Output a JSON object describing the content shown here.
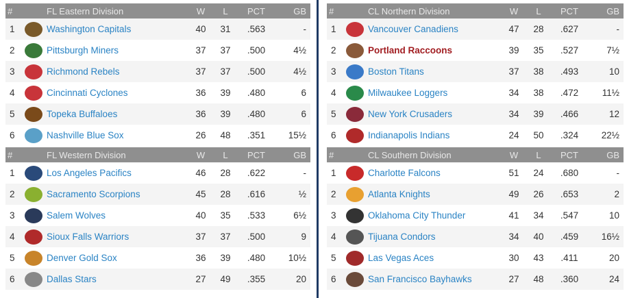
{
  "headers": {
    "rank": "#",
    "w": "W",
    "l": "L",
    "pct": "PCT",
    "gb": "GB"
  },
  "divisions": [
    {
      "name": "FL Eastern Division",
      "teams": [
        {
          "rank": "1",
          "name": "Washington Capitals",
          "w": "40",
          "l": "31",
          "pct": ".563",
          "gb": "-",
          "logo": "#7a5a2a"
        },
        {
          "rank": "2",
          "name": "Pittsburgh Miners",
          "w": "37",
          "l": "37",
          "pct": ".500",
          "gb": "4½",
          "logo": "#3a7a3a"
        },
        {
          "rank": "3",
          "name": "Richmond Rebels",
          "w": "37",
          "l": "37",
          "pct": ".500",
          "gb": "4½",
          "logo": "#c8343a"
        },
        {
          "rank": "4",
          "name": "Cincinnati Cyclones",
          "w": "36",
          "l": "39",
          "pct": ".480",
          "gb": "6",
          "logo": "#c8343a"
        },
        {
          "rank": "5",
          "name": "Topeka Buffaloes",
          "w": "36",
          "l": "39",
          "pct": ".480",
          "gb": "6",
          "logo": "#7a4a1a"
        },
        {
          "rank": "6",
          "name": "Nashville Blue Sox",
          "w": "26",
          "l": "48",
          "pct": ".351",
          "gb": "15½",
          "logo": "#5aa0c8"
        }
      ]
    },
    {
      "name": "FL Western Division",
      "teams": [
        {
          "rank": "1",
          "name": "Los Angeles Pacifics",
          "w": "46",
          "l": "28",
          "pct": ".622",
          "gb": "-",
          "logo": "#2a4a7a"
        },
        {
          "rank": "2",
          "name": "Sacramento Scorpions",
          "w": "45",
          "l": "28",
          "pct": ".616",
          "gb": "½",
          "logo": "#8ab030"
        },
        {
          "rank": "3",
          "name": "Salem Wolves",
          "w": "40",
          "l": "35",
          "pct": ".533",
          "gb": "6½",
          "logo": "#2a3a5a"
        },
        {
          "rank": "4",
          "name": "Sioux Falls Warriors",
          "w": "37",
          "l": "37",
          "pct": ".500",
          "gb": "9",
          "logo": "#b02a2a"
        },
        {
          "rank": "5",
          "name": "Denver Gold Sox",
          "w": "36",
          "l": "39",
          "pct": ".480",
          "gb": "10½",
          "logo": "#c8842a"
        },
        {
          "rank": "6",
          "name": "Dallas Stars",
          "w": "27",
          "l": "49",
          "pct": ".355",
          "gb": "20",
          "logo": "#888888"
        }
      ]
    },
    {
      "name": "CL Northern Division",
      "teams": [
        {
          "rank": "1",
          "name": "Vancouver Canadiens",
          "w": "47",
          "l": "28",
          "pct": ".627",
          "gb": "-",
          "logo": "#c8343a"
        },
        {
          "rank": "2",
          "name": "Portland Raccoons",
          "w": "39",
          "l": "35",
          "pct": ".527",
          "gb": "7½",
          "logo": "#8a5a3a",
          "highlight": true
        },
        {
          "rank": "3",
          "name": "Boston Titans",
          "w": "37",
          "l": "38",
          "pct": ".493",
          "gb": "10",
          "logo": "#3a7ac8"
        },
        {
          "rank": "4",
          "name": "Milwaukee Loggers",
          "w": "34",
          "l": "38",
          "pct": ".472",
          "gb": "11½",
          "logo": "#2a8a4a"
        },
        {
          "rank": "5",
          "name": "New York Crusaders",
          "w": "34",
          "l": "39",
          "pct": ".466",
          "gb": "12",
          "logo": "#8a2a3a"
        },
        {
          "rank": "6",
          "name": "Indianapolis Indians",
          "w": "24",
          "l": "50",
          "pct": ".324",
          "gb": "22½",
          "logo": "#b02a2a"
        }
      ]
    },
    {
      "name": "CL Southern Division",
      "teams": [
        {
          "rank": "1",
          "name": "Charlotte Falcons",
          "w": "51",
          "l": "24",
          "pct": ".680",
          "gb": "-",
          "logo": "#c82a2a"
        },
        {
          "rank": "2",
          "name": "Atlanta Knights",
          "w": "49",
          "l": "26",
          "pct": ".653",
          "gb": "2",
          "logo": "#e8a030"
        },
        {
          "rank": "3",
          "name": "Oklahoma City Thunder",
          "w": "41",
          "l": "34",
          "pct": ".547",
          "gb": "10",
          "logo": "#333333"
        },
        {
          "rank": "4",
          "name": "Tijuana Condors",
          "w": "34",
          "l": "40",
          "pct": ".459",
          "gb": "16½",
          "logo": "#555555"
        },
        {
          "rank": "5",
          "name": "Las Vegas Aces",
          "w": "30",
          "l": "43",
          "pct": ".411",
          "gb": "20",
          "logo": "#a02a2a"
        },
        {
          "rank": "6",
          "name": "San Francisco Bayhawks",
          "w": "27",
          "l": "48",
          "pct": ".360",
          "gb": "24",
          "logo": "#6a4a3a"
        }
      ]
    }
  ]
}
